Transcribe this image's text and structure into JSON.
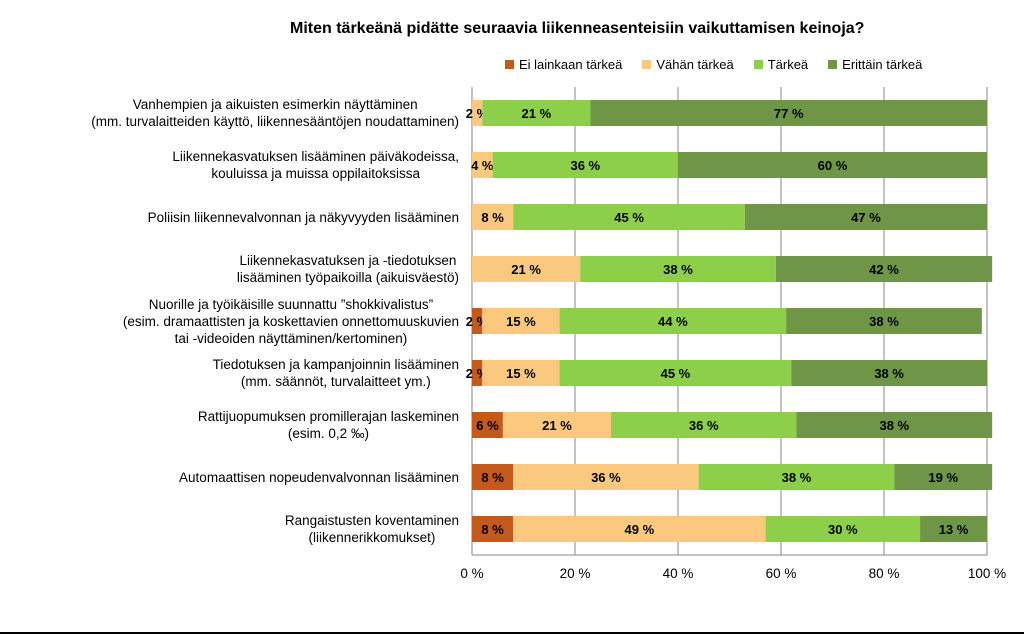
{
  "chart_data": {
    "type": "bar",
    "orientation": "horizontal",
    "stacked": "percent",
    "title": "Miten tärkeänä pidätte seuraavia liikenneasenteisiin vaikuttamisen keinoja?",
    "legend_position": "top",
    "categories": [
      [
        "Vanhempien ja aikuisten esimerkin näyttäminen",
        "(mm. turvalaitteiden käyttö, liikennesääntöjen noudattaminen)"
      ],
      [
        "Liikennekasvatuksen lisääminen päiväkodeissa,",
        "kouluissa ja muissa oppilaitoksissa"
      ],
      [
        "Poliisin liikennevalvonnan ja näkyvyyden lisääminen"
      ],
      [
        "Liikennekasvatuksen ja -tiedotuksen",
        "lisääminen työpaikoilla (aikuisväestö)"
      ],
      [
        "Nuorille ja työikäisille suunnattu ”shokkivalistus”",
        "(esim. dramaattisten ja koskettavien onnettomuuskuvien",
        "tai -videoiden näyttäminen/kertominen)"
      ],
      [
        "Tiedotuksen ja kampanjoinnin lisääminen",
        "(mm. säännöt, turvalaitteet ym.)"
      ],
      [
        "Rattijuopumuksen promillerajan laskeminen",
        "(esim. 0,2 ‰)"
      ],
      [
        "Automaattisen nopeudenvalvonnan lisääminen"
      ],
      [
        "Rangaistusten koventaminen",
        "(liikennerikkomukset)"
      ]
    ],
    "series": [
      {
        "name": "Ei lainkaan tärkeä",
        "color": "#C5591A",
        "values": [
          0,
          0,
          0,
          0,
          2,
          2,
          6,
          8,
          8
        ]
      },
      {
        "name": "Vähän tärkeä",
        "color": "#FAC97E",
        "values": [
          2,
          4,
          8,
          21,
          15,
          15,
          21,
          36,
          49
        ]
      },
      {
        "name": "Tärkeä",
        "color": "#8ECF4A",
        "values": [
          21,
          36,
          45,
          38,
          44,
          45,
          36,
          38,
          30
        ]
      },
      {
        "name": "Erittäin tärkeä",
        "color": "#6E9646",
        "values": [
          77,
          60,
          47,
          42,
          38,
          38,
          38,
          19,
          13
        ]
      }
    ],
    "data_labels": [
      [
        null,
        "2 %",
        "21 %",
        "77 %"
      ],
      [
        null,
        "4 %",
        "36 %",
        "60 %"
      ],
      [
        null,
        "8 %",
        "45 %",
        "47 %"
      ],
      [
        null,
        "21 %",
        "38 %",
        "42 %"
      ],
      [
        "2 %",
        "15 %",
        "44 %",
        "38 %"
      ],
      [
        "2 %",
        "15 %",
        "45 %",
        "38 %"
      ],
      [
        "6 %",
        "21 %",
        "36 %",
        "38 %"
      ],
      [
        "8 %",
        "36 %",
        "38 %",
        "19 %"
      ],
      [
        "8 %",
        "49 %",
        "30 %",
        "13 %"
      ]
    ],
    "xlim": [
      0,
      100
    ],
    "x_ticks": [
      "0 %",
      "20 %",
      "40 %",
      "60 %",
      "80 %",
      "100 %"
    ],
    "gridlines": true
  }
}
